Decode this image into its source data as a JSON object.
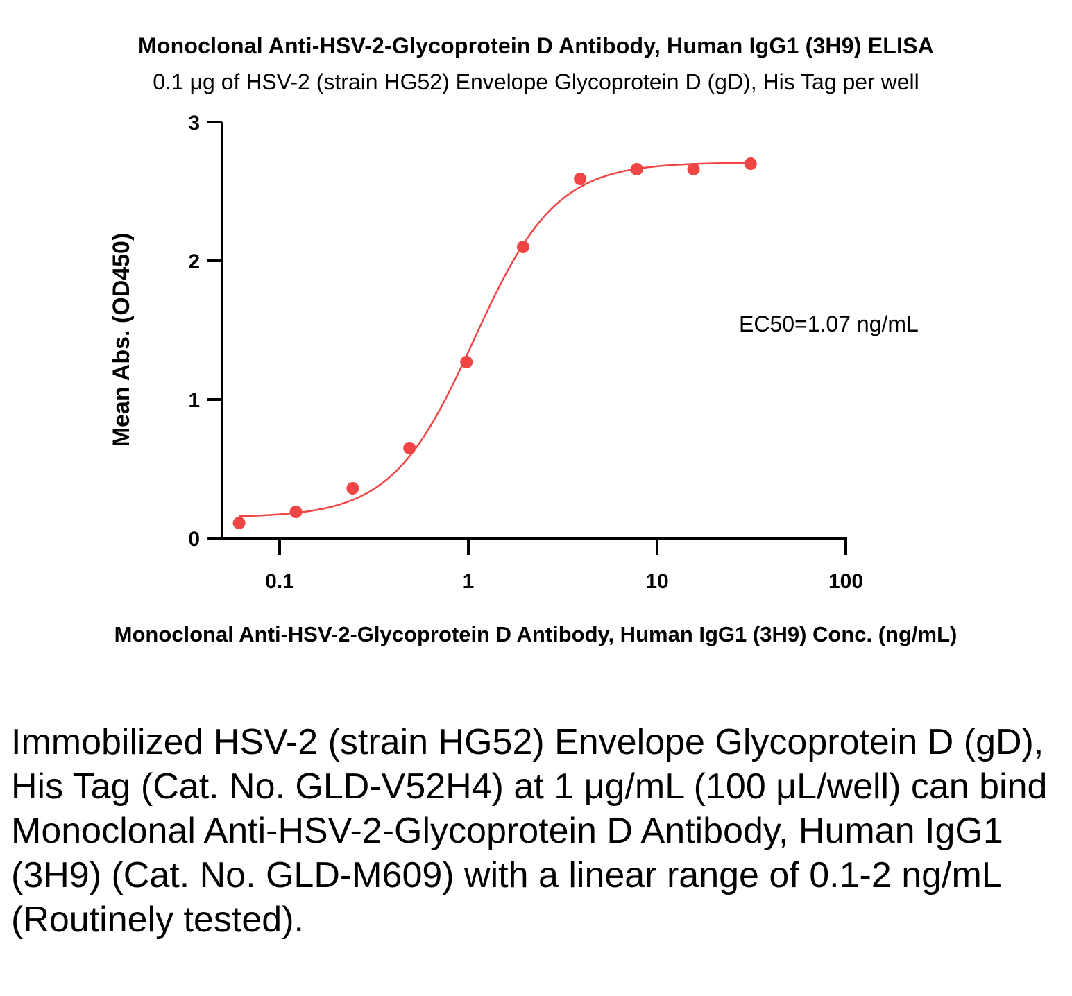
{
  "chart_data": {
    "type": "scatter",
    "title": "Monoclonal Anti-HSV-2-Glycoprotein D Antibody, Human IgG1 (3H9) ELISA",
    "subtitle": "0.1 μg of HSV-2 (strain HG52) Envelope Glycoprotein D (gD), His Tag per well",
    "xlabel": "Monoclonal Anti-HSV-2-Glycoprotein D Antibody, Human IgG1 (3H9) Conc. (ng/mL)",
    "ylabel": "Mean Abs. (OD450)",
    "xscale": "log",
    "xlim": [
      0.05,
      100
    ],
    "ylim": [
      0,
      3
    ],
    "xticks": [
      0.1,
      1,
      10,
      100
    ],
    "xtick_labels": [
      "0.1",
      "1",
      "10",
      "100"
    ],
    "yticks": [
      0,
      1,
      2,
      3
    ],
    "ytick_labels": [
      "0",
      "1",
      "2",
      "3"
    ],
    "grid": false,
    "color": "#f04545",
    "series": [
      {
        "x": [
          0.061,
          0.122,
          0.244,
          0.488,
          0.977,
          1.95,
          3.91,
          7.81,
          15.6,
          31.3
        ],
        "y": [
          0.11,
          0.19,
          0.36,
          0.65,
          1.27,
          2.1,
          2.59,
          2.66,
          2.66,
          2.7
        ]
      }
    ],
    "fit": {
      "model": "4PL",
      "bottom": 0.15,
      "top": 2.71,
      "ec50": 1.07,
      "hill": 2.0
    },
    "annotation": "EC50=1.07 ng/mL"
  },
  "caption": "Immobilized HSV-2 (strain HG52) Envelope Glycoprotein D (gD), His Tag (Cat. No. GLD-V52H4) at 1 μg/mL (100 μL/well) can bind Monoclonal Anti-HSV-2-Glycoprotein D Antibody, Human IgG1 (3H9) (Cat. No. GLD-M609) with a linear range of 0.1-2 ng/mL (Routinely tested)."
}
